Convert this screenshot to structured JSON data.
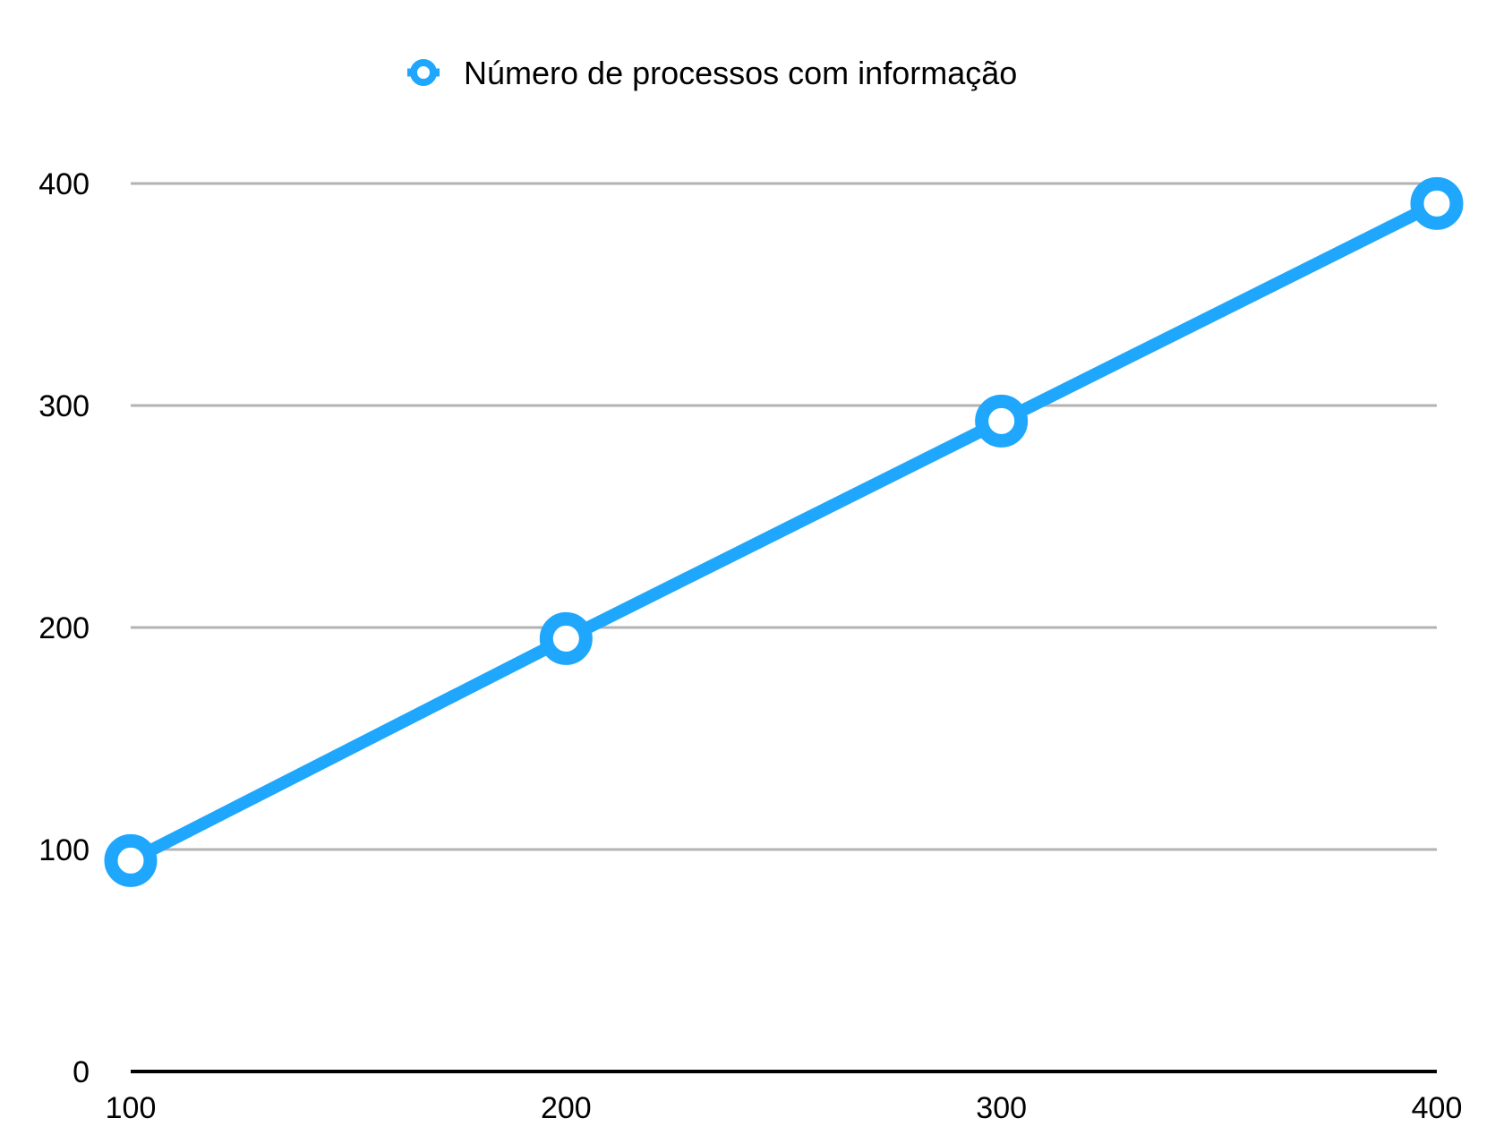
{
  "chart_data": {
    "type": "line",
    "x": [
      100,
      200,
      300,
      400
    ],
    "series": [
      {
        "name": "Número de processos com informação",
        "values": [
          95,
          195,
          293,
          391
        ],
        "color": "#1ea7fd"
      }
    ],
    "xticks": [
      "100",
      "200",
      "300",
      "400"
    ],
    "yticks": [
      "0",
      "100",
      "200",
      "300",
      "400"
    ],
    "xlim": [
      100,
      400
    ],
    "ylim": [
      0,
      400
    ],
    "grid": true,
    "legend_position": "top-center",
    "marker": "hollow-circle"
  },
  "colors": {
    "series": "#1ea7fd",
    "grid": "#b3b3b3",
    "axis": "#000000",
    "marker_fill": "#ffffff"
  }
}
